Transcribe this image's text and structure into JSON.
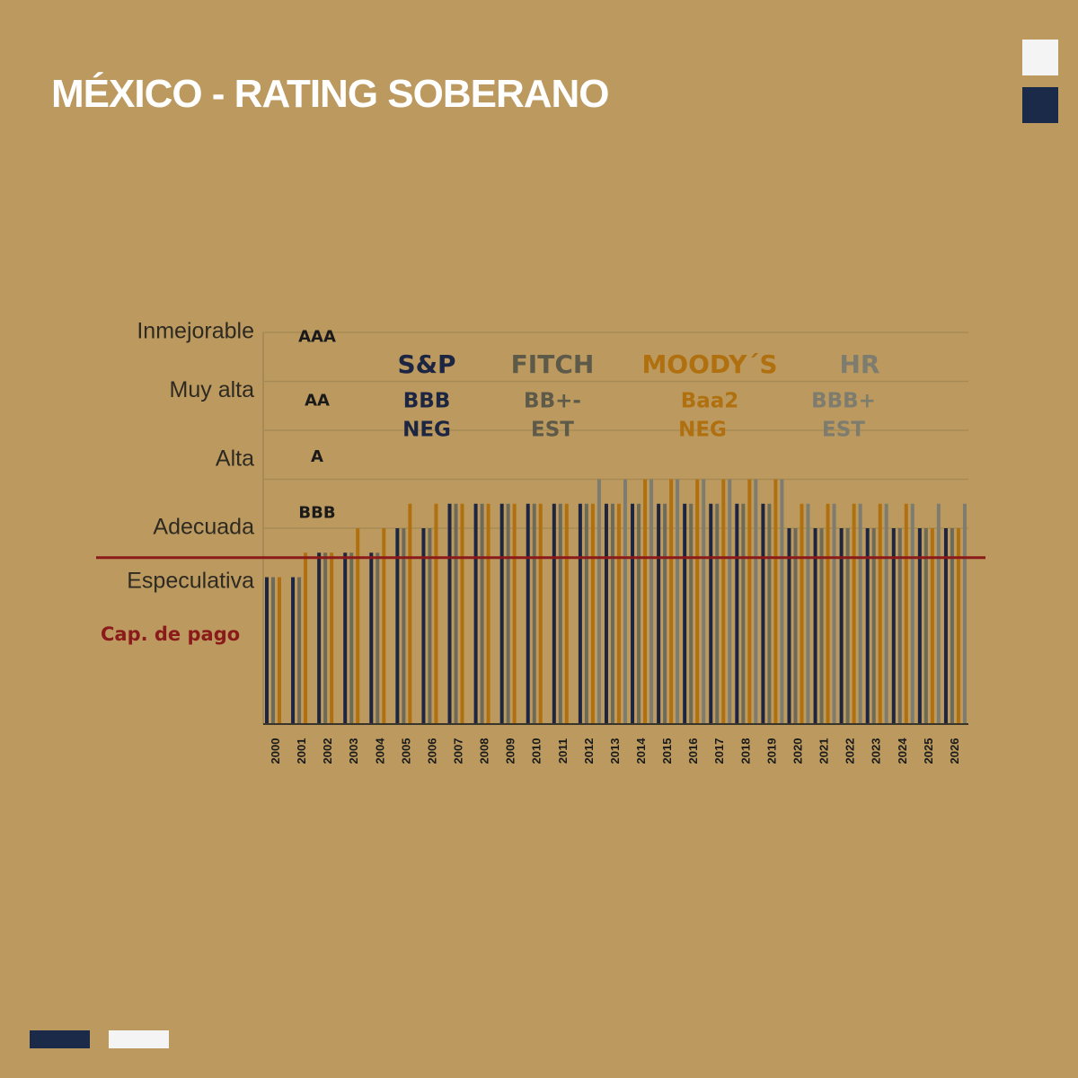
{
  "header": {
    "title": "MÉXICO - RATING SOBERANO"
  },
  "chart_data": {
    "type": "bar",
    "categories": [
      "2000",
      "2001",
      "2002",
      "2003",
      "2004",
      "2005",
      "2006",
      "2007",
      "2008",
      "2009",
      "2010",
      "2011",
      "2012",
      "2013",
      "2014",
      "2015",
      "2016",
      "2017",
      "2018",
      "2019",
      "2020",
      "2021",
      "2022",
      "2023",
      "2024",
      "2025",
      "2026"
    ],
    "series": [
      {
        "name": "S&P",
        "rating": "BBB",
        "outlook": "NEG",
        "color": "#1c2541",
        "values": [
          6,
          6,
          7,
          7,
          7,
          8,
          8,
          9,
          9,
          9,
          9,
          9,
          9,
          9,
          9,
          9,
          9,
          9,
          9,
          9,
          8,
          8,
          8,
          8,
          8,
          8,
          8
        ]
      },
      {
        "name": "FITCH",
        "rating": "BB+-",
        "outlook": "EST",
        "color": "#6e6a58",
        "values": [
          6,
          6,
          7,
          7,
          7,
          8,
          8,
          9,
          9,
          9,
          9,
          9,
          9,
          9,
          9,
          9,
          9,
          9,
          9,
          9,
          8,
          8,
          8,
          8,
          8,
          8,
          8
        ]
      },
      {
        "name": "MOODY´S",
        "rating": "Baa2",
        "outlook": "NEG",
        "color": "#b0700f",
        "values": [
          6,
          7,
          7,
          8,
          8,
          9,
          9,
          9,
          9,
          9,
          9,
          9,
          9,
          9,
          10,
          10,
          10,
          10,
          10,
          10,
          9,
          9,
          9,
          9,
          9,
          8,
          8
        ]
      },
      {
        "name": "HR",
        "rating": "BBB+",
        "outlook": "EST",
        "color": "#7d7c6e",
        "values": [
          null,
          null,
          null,
          null,
          null,
          null,
          null,
          null,
          null,
          null,
          null,
          null,
          10,
          10,
          10,
          10,
          10,
          10,
          10,
          10,
          9,
          9,
          9,
          9,
          9,
          9,
          9
        ]
      }
    ],
    "ylim": [
      0,
      16
    ],
    "yticks": [
      {
        "value": 16,
        "label": "Inmejorable"
      },
      {
        "value": 13.6,
        "label": "Muy alta"
      },
      {
        "value": 10.8,
        "label": "Alta"
      },
      {
        "value": 8,
        "label": "Adecuada"
      },
      {
        "value": 5.8,
        "label": "Especulativa"
      }
    ],
    "rating_ticks": [
      {
        "value": 15.8,
        "label": "AAA"
      },
      {
        "value": 13.2,
        "label": "AA"
      },
      {
        "value": 10.9,
        "label": "A"
      },
      {
        "value": 8.6,
        "label": "BBB"
      }
    ],
    "ygrid": [
      8,
      10,
      12,
      14,
      16
    ],
    "threshold": 6.8,
    "threshold_color": "#8b1a1a",
    "threshold_label": "Cap. de pago"
  }
}
